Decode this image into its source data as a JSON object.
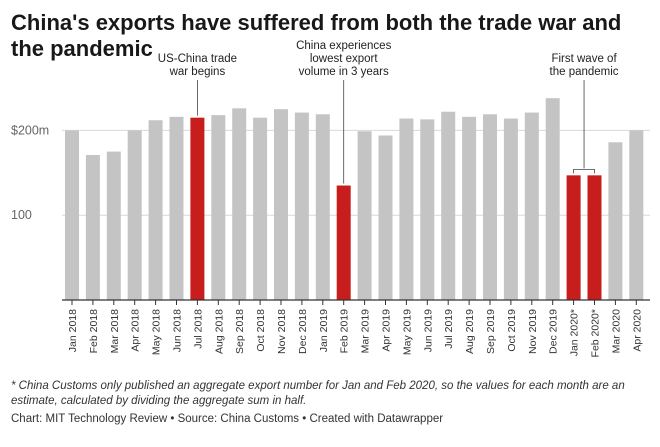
{
  "title": "China's exports have suffered from both the trade war and the pandemic",
  "chart_data": {
    "type": "bar",
    "categories": [
      "Jan 2018",
      "Feb 2018",
      "Mar 2018",
      "Apr 2018",
      "May 2018",
      "Jun 2018",
      "Jul 2018",
      "Aug 2018",
      "Sep 2018",
      "Oct 2018",
      "Nov 2018",
      "Dec 2018",
      "Jan 2019",
      "Feb 2019",
      "Mar 2019",
      "Apr 2019",
      "May 2019",
      "Jun 2019",
      "Jul 2019",
      "Aug 2019",
      "Sep 2019",
      "Oct 2019",
      "Nov 2019",
      "Dec 2019",
      "Jan 2020*",
      "Feb 2020*",
      "Mar 2020",
      "Apr 2020"
    ],
    "values": [
      200,
      171,
      175,
      200,
      212,
      216,
      215,
      218,
      226,
      215,
      225,
      221,
      219,
      135,
      199,
      194,
      214,
      213,
      222,
      216,
      219,
      214,
      221,
      238,
      147,
      147,
      186,
      200
    ],
    "highlighted": [
      "Jul 2018",
      "Feb 2019",
      "Jan 2020*",
      "Feb 2020*"
    ],
    "ylim": [
      0,
      250
    ],
    "yticks": [
      {
        "value": 200,
        "label": "$200m"
      },
      {
        "value": 100,
        "label": "100"
      }
    ],
    "xlabel": "",
    "ylabel": "",
    "colors": {
      "default": "#c4c4c4",
      "highlight": "#c71e1d",
      "grid": "#d8d8d8",
      "axis": "#333333"
    },
    "annotations": [
      {
        "target": "Jul 2018",
        "lines": [
          "US-China trade",
          "war begins"
        ]
      },
      {
        "target": "Feb 2019",
        "lines": [
          "China experiences",
          "lowest export",
          "volume in 3 years"
        ]
      },
      {
        "target": "Jan 2020*",
        "target_end": "Feb 2020*",
        "lines": [
          "First wave of",
          "the pandemic"
        ]
      }
    ]
  },
  "footnote": "* China Customs only published an aggregate export number for Jan and Feb 2020, so the values for each month are an estimate, calculated by dividing the aggregate sum in half.",
  "credits": {
    "chart": "Chart: MIT Technology Review",
    "source": "Source: China Customs",
    "tool": "Created with Datawrapper",
    "separator": " • "
  }
}
